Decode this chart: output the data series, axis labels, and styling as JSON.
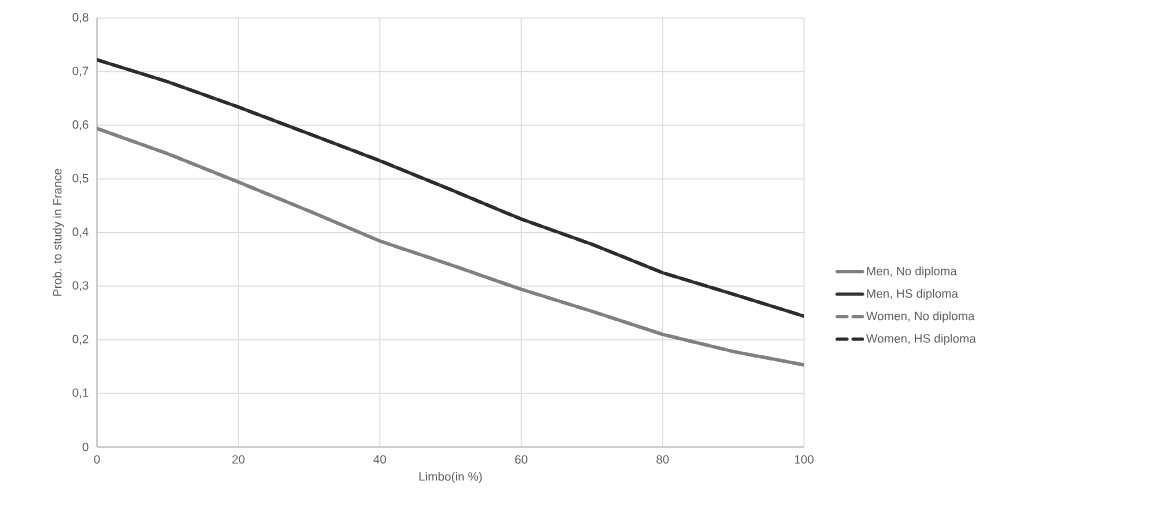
{
  "chart_data": {
    "type": "line",
    "xlabel": "Limbo(in %)",
    "ylabel": "Prob. to study in France",
    "x": [
      0,
      10,
      20,
      30,
      40,
      50,
      60,
      70,
      80,
      90,
      100
    ],
    "series": [
      {
        "name": "Men,  No diploma",
        "color": "#7f7f7f",
        "line_style": "solid",
        "values": [
          0.594,
          0.547,
          0.494,
          0.44,
          0.384,
          0.34,
          0.294,
          0.253,
          0.21,
          0.178,
          0.153
        ]
      },
      {
        "name": "Men,  HS diploma",
        "color": "#333333",
        "line_style": "solid",
        "values": [
          0.722,
          0.681,
          0.634,
          0.584,
          0.534,
          0.48,
          0.425,
          0.378,
          0.325,
          0.285,
          0.244
        ]
      },
      {
        "name": "Women, No diploma",
        "color": "#808080",
        "line_style": "dashed",
        "values": [
          0.594,
          0.547,
          0.494,
          0.44,
          0.384,
          0.34,
          0.294,
          0.253,
          0.21,
          0.178,
          0.153
        ]
      },
      {
        "name": "Women, HS diploma",
        "color": "#2b2b2b",
        "line_style": "dashed",
        "values": [
          0.722,
          0.681,
          0.634,
          0.584,
          0.534,
          0.48,
          0.425,
          0.378,
          0.325,
          0.285,
          0.244
        ]
      }
    ],
    "xlim": [
      0,
      100
    ],
    "xticks": [
      0,
      20,
      40,
      60,
      80,
      100
    ],
    "ylim": [
      0,
      0.8
    ],
    "yticks": [
      0,
      {
        "value": 0.1,
        "label": "0,1"
      },
      {
        "value": 0.2,
        "label": "0,2"
      },
      {
        "value": 0.3,
        "label": "0,3"
      },
      {
        "value": 0.4,
        "label": "0,4"
      },
      {
        "value": 0.5,
        "label": "0,5"
      },
      {
        "value": 0.6,
        "label": "0,6"
      },
      {
        "value": 0.7,
        "label": "0,7"
      },
      {
        "value": 0.8,
        "label": "0,8"
      }
    ],
    "grid": true,
    "legend": "right",
    "marker": "none"
  }
}
